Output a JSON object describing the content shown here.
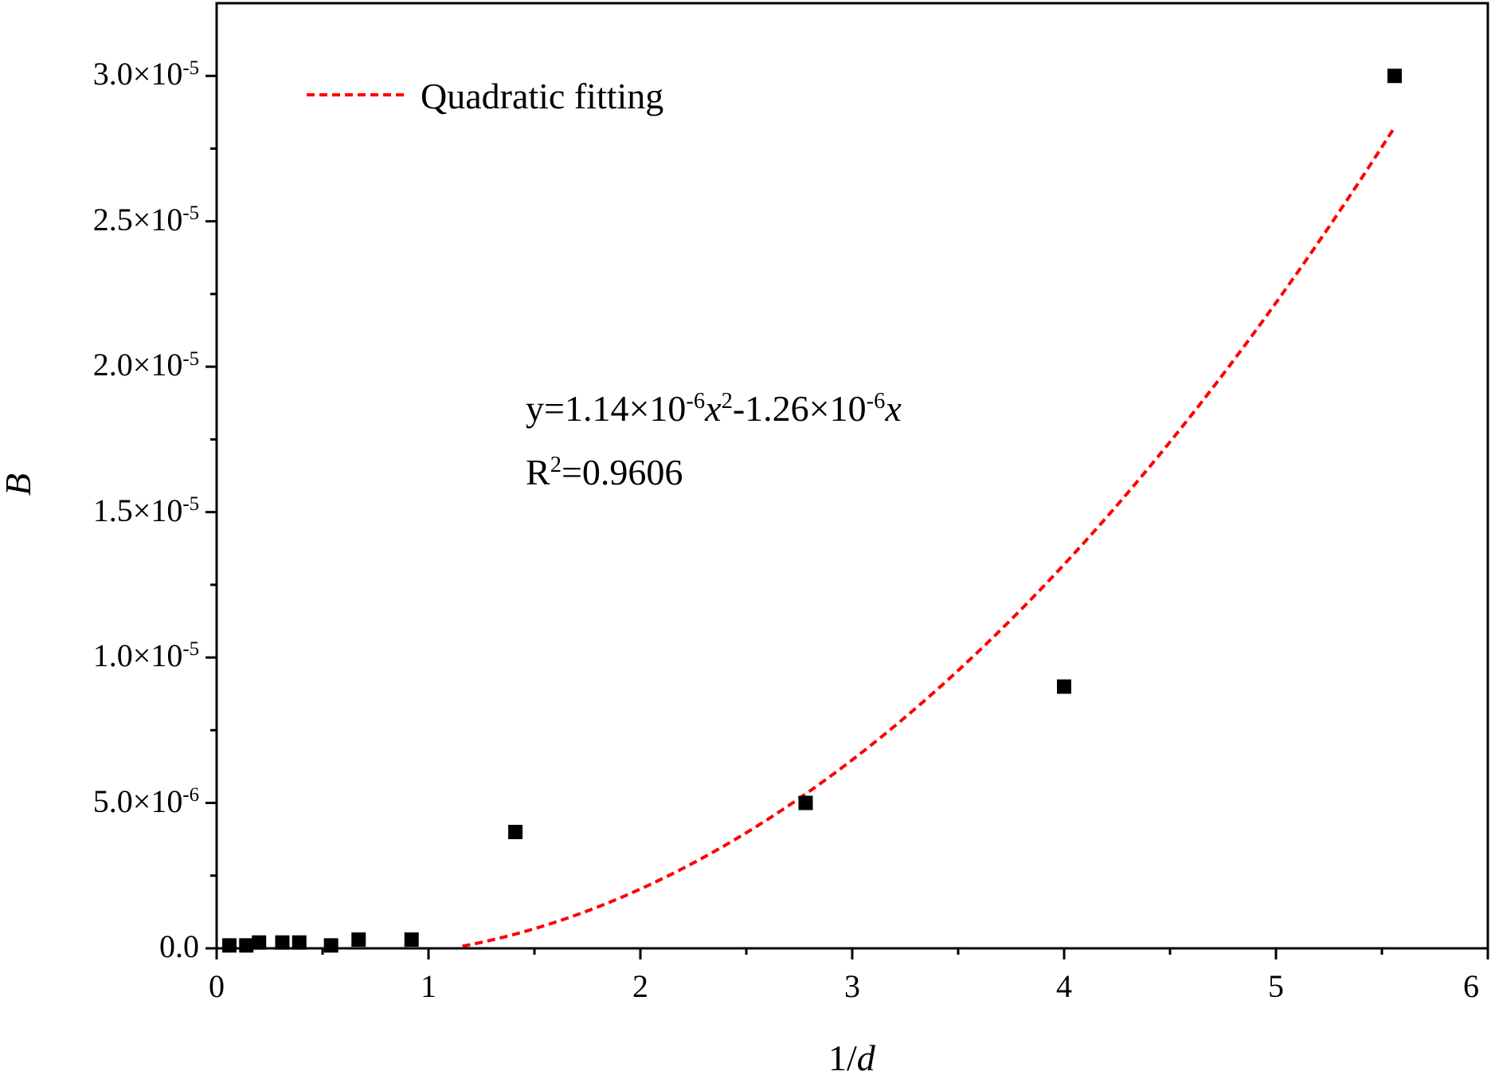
{
  "chart_data": {
    "type": "scatter",
    "title": "",
    "xlabel": {
      "prefix": "1/",
      "var": "d"
    },
    "ylabel": "B",
    "xlim": [
      0,
      6
    ],
    "ylim": [
      0,
      3.25e-05
    ],
    "x_ticks": [
      {
        "value": 0,
        "label": "0"
      },
      {
        "value": 1,
        "label": "1"
      },
      {
        "value": 2,
        "label": "2"
      },
      {
        "value": 3,
        "label": "3"
      },
      {
        "value": 4,
        "label": "4"
      },
      {
        "value": 5,
        "label": "5"
      },
      {
        "value": 6,
        "label": "6"
      }
    ],
    "y_ticks": [
      {
        "value": 0,
        "mant": "0.0",
        "exp": ""
      },
      {
        "value": 5e-06,
        "mant": "5.0×10",
        "exp": "-6"
      },
      {
        "value": 1e-05,
        "mant": "1.0×10",
        "exp": "-5"
      },
      {
        "value": 1.5e-05,
        "mant": "1.5×10",
        "exp": "-5"
      },
      {
        "value": 2e-05,
        "mant": "2.0×10",
        "exp": "-5"
      },
      {
        "value": 2.5e-05,
        "mant": "2.5×10",
        "exp": "-5"
      },
      {
        "value": 3e-05,
        "mant": "3.0×10",
        "exp": "-5"
      }
    ],
    "grid": false,
    "legend_position": "top-left",
    "series": [
      {
        "kind": "points",
        "marker": "square",
        "color": "#000000",
        "points": [
          {
            "x": 0.06,
            "y": 1e-07
          },
          {
            "x": 0.14,
            "y": 1e-07
          },
          {
            "x": 0.2,
            "y": 2e-07
          },
          {
            "x": 0.31,
            "y": 2e-07
          },
          {
            "x": 0.39,
            "y": 2e-07
          },
          {
            "x": 0.54,
            "y": 1e-07
          },
          {
            "x": 0.67,
            "y": 3e-07
          },
          {
            "x": 0.92,
            "y": 3e-07
          },
          {
            "x": 1.41,
            "y": 4e-06
          },
          {
            "x": 2.78,
            "y": 5e-06
          },
          {
            "x": 4.0,
            "y": 9e-06
          },
          {
            "x": 5.56,
            "y": 3e-05
          }
        ]
      },
      {
        "kind": "fit",
        "name": "Quadratic fitting",
        "style": "dashed",
        "color": "#ff0000",
        "coefficients": {
          "a": 1.14e-06,
          "b": -1.26e-06,
          "c": 0
        },
        "x_range": [
          1.16,
          5.56
        ]
      }
    ],
    "annotations": {
      "equation": {
        "y_eq": "y=1.14×10",
        "exp1": "-6",
        "var1": "x",
        "pow": "2",
        "middle": "-1.26×10",
        "exp2": "-6",
        "var2": "x"
      },
      "r2": {
        "base": "R",
        "pow": "2",
        "rest": "=0.9606"
      }
    }
  }
}
